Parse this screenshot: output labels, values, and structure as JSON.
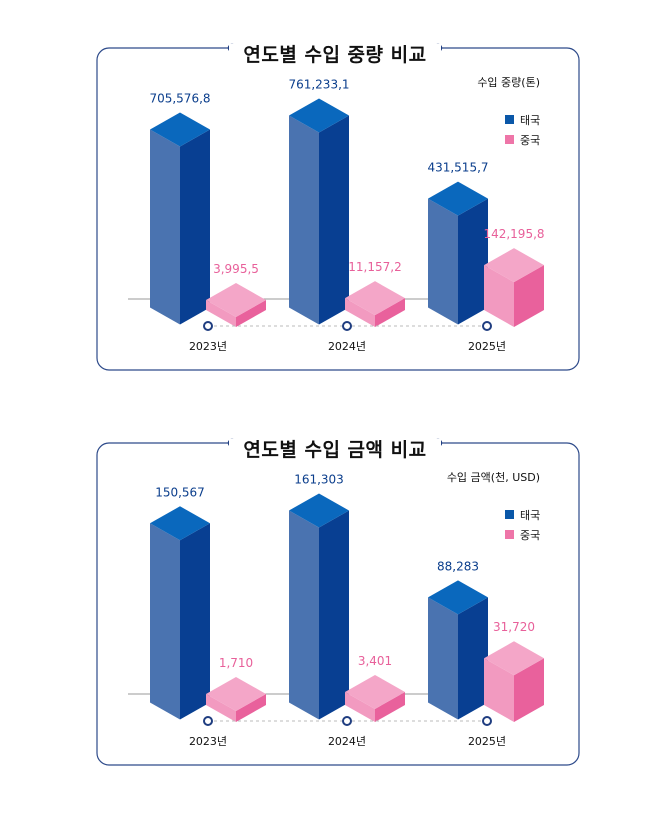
{
  "chart_data": [
    {
      "type": "bar",
      "title": "연도별 수입 중량 비교",
      "unit_label": "수입 중량(톤)",
      "categories": [
        "2023년",
        "2024년",
        "2025년"
      ],
      "series": [
        {
          "name": "태국",
          "values": [
            705576.8,
            761233.1,
            431515.7
          ],
          "labels": [
            "705,576,8",
            "761,233,1",
            "431,515,7"
          ],
          "color": "#0a57a8"
        },
        {
          "name": "중국",
          "values": [
            3995.5,
            11157.2,
            142195.8
          ],
          "labels": [
            "3,995,5",
            "11,157,2",
            "142,195,8"
          ],
          "color": "#ee75a8"
        }
      ],
      "ylim": [
        0,
        761233.1
      ]
    },
    {
      "type": "bar",
      "title": "연도별 수입 금액 비교",
      "unit_label": "수입 금액(천, USD)",
      "categories": [
        "2023년",
        "2024년",
        "2025년"
      ],
      "series": [
        {
          "name": "태국",
          "values": [
            150567,
            161303,
            88283
          ],
          "labels": [
            "150,567",
            "161,303",
            "88,283"
          ],
          "color": "#0a57a8"
        },
        {
          "name": "중국",
          "values": [
            1710,
            3401,
            31720
          ],
          "labels": [
            "1,710",
            "3,401",
            "31,720"
          ],
          "color": "#ee75a8"
        }
      ],
      "ylim": [
        0,
        161303
      ]
    }
  ]
}
